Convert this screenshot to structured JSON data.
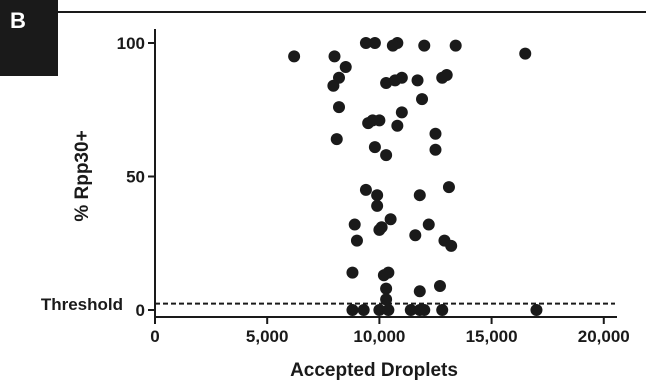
{
  "panel_label": "B",
  "chart_data": {
    "type": "scatter",
    "xlabel": "Accepted Droplets",
    "ylabel": "% Rpp30+",
    "xlim": [
      0,
      20500
    ],
    "ylim": [
      0,
      100
    ],
    "x_ticks": [
      0,
      5000,
      10000,
      15000,
      20000
    ],
    "x_tick_labels": [
      "0",
      "5,000",
      "10,000",
      "15,000",
      "20,000"
    ],
    "y_ticks": [
      0,
      50,
      100
    ],
    "y_tick_labels": [
      "0",
      "50",
      "100"
    ],
    "threshold": {
      "label": "Threshold",
      "value": 2
    },
    "grid": false,
    "points": [
      {
        "x": 6200,
        "y": 95
      },
      {
        "x": 8000,
        "y": 95
      },
      {
        "x": 8500,
        "y": 91
      },
      {
        "x": 8200,
        "y": 87
      },
      {
        "x": 7950,
        "y": 84
      },
      {
        "x": 8200,
        "y": 76
      },
      {
        "x": 8100,
        "y": 64
      },
      {
        "x": 9400,
        "y": 100
      },
      {
        "x": 9800,
        "y": 100
      },
      {
        "x": 10800,
        "y": 100
      },
      {
        "x": 10600,
        "y": 99
      },
      {
        "x": 12000,
        "y": 99
      },
      {
        "x": 13400,
        "y": 99
      },
      {
        "x": 16500,
        "y": 96
      },
      {
        "x": 10300,
        "y": 85
      },
      {
        "x": 10700,
        "y": 86
      },
      {
        "x": 11000,
        "y": 87
      },
      {
        "x": 11700,
        "y": 86
      },
      {
        "x": 13000,
        "y": 88
      },
      {
        "x": 12800,
        "y": 87
      },
      {
        "x": 11900,
        "y": 79
      },
      {
        "x": 11000,
        "y": 74
      },
      {
        "x": 9500,
        "y": 70
      },
      {
        "x": 9700,
        "y": 71
      },
      {
        "x": 10000,
        "y": 71
      },
      {
        "x": 10800,
        "y": 69
      },
      {
        "x": 12500,
        "y": 66
      },
      {
        "x": 12500,
        "y": 60
      },
      {
        "x": 9800,
        "y": 61
      },
      {
        "x": 10300,
        "y": 58
      },
      {
        "x": 9400,
        "y": 45
      },
      {
        "x": 13100,
        "y": 46
      },
      {
        "x": 9900,
        "y": 43
      },
      {
        "x": 11800,
        "y": 43
      },
      {
        "x": 9900,
        "y": 39
      },
      {
        "x": 10500,
        "y": 34
      },
      {
        "x": 10000,
        "y": 30
      },
      {
        "x": 10100,
        "y": 31
      },
      {
        "x": 12200,
        "y": 32
      },
      {
        "x": 8900,
        "y": 32
      },
      {
        "x": 9000,
        "y": 26
      },
      {
        "x": 11600,
        "y": 28
      },
      {
        "x": 12900,
        "y": 26
      },
      {
        "x": 13200,
        "y": 24
      },
      {
        "x": 8800,
        "y": 14
      },
      {
        "x": 10200,
        "y": 13
      },
      {
        "x": 10400,
        "y": 14
      },
      {
        "x": 10300,
        "y": 8
      },
      {
        "x": 11800,
        "y": 7
      },
      {
        "x": 12700,
        "y": 9
      },
      {
        "x": 10300,
        "y": 4
      },
      {
        "x": 8800,
        "y": 0
      },
      {
        "x": 9300,
        "y": 0
      },
      {
        "x": 10000,
        "y": 0
      },
      {
        "x": 10400,
        "y": 0
      },
      {
        "x": 11400,
        "y": 0
      },
      {
        "x": 11800,
        "y": 0
      },
      {
        "x": 12000,
        "y": 0
      },
      {
        "x": 12800,
        "y": 0
      },
      {
        "x": 17000,
        "y": 0
      }
    ]
  }
}
